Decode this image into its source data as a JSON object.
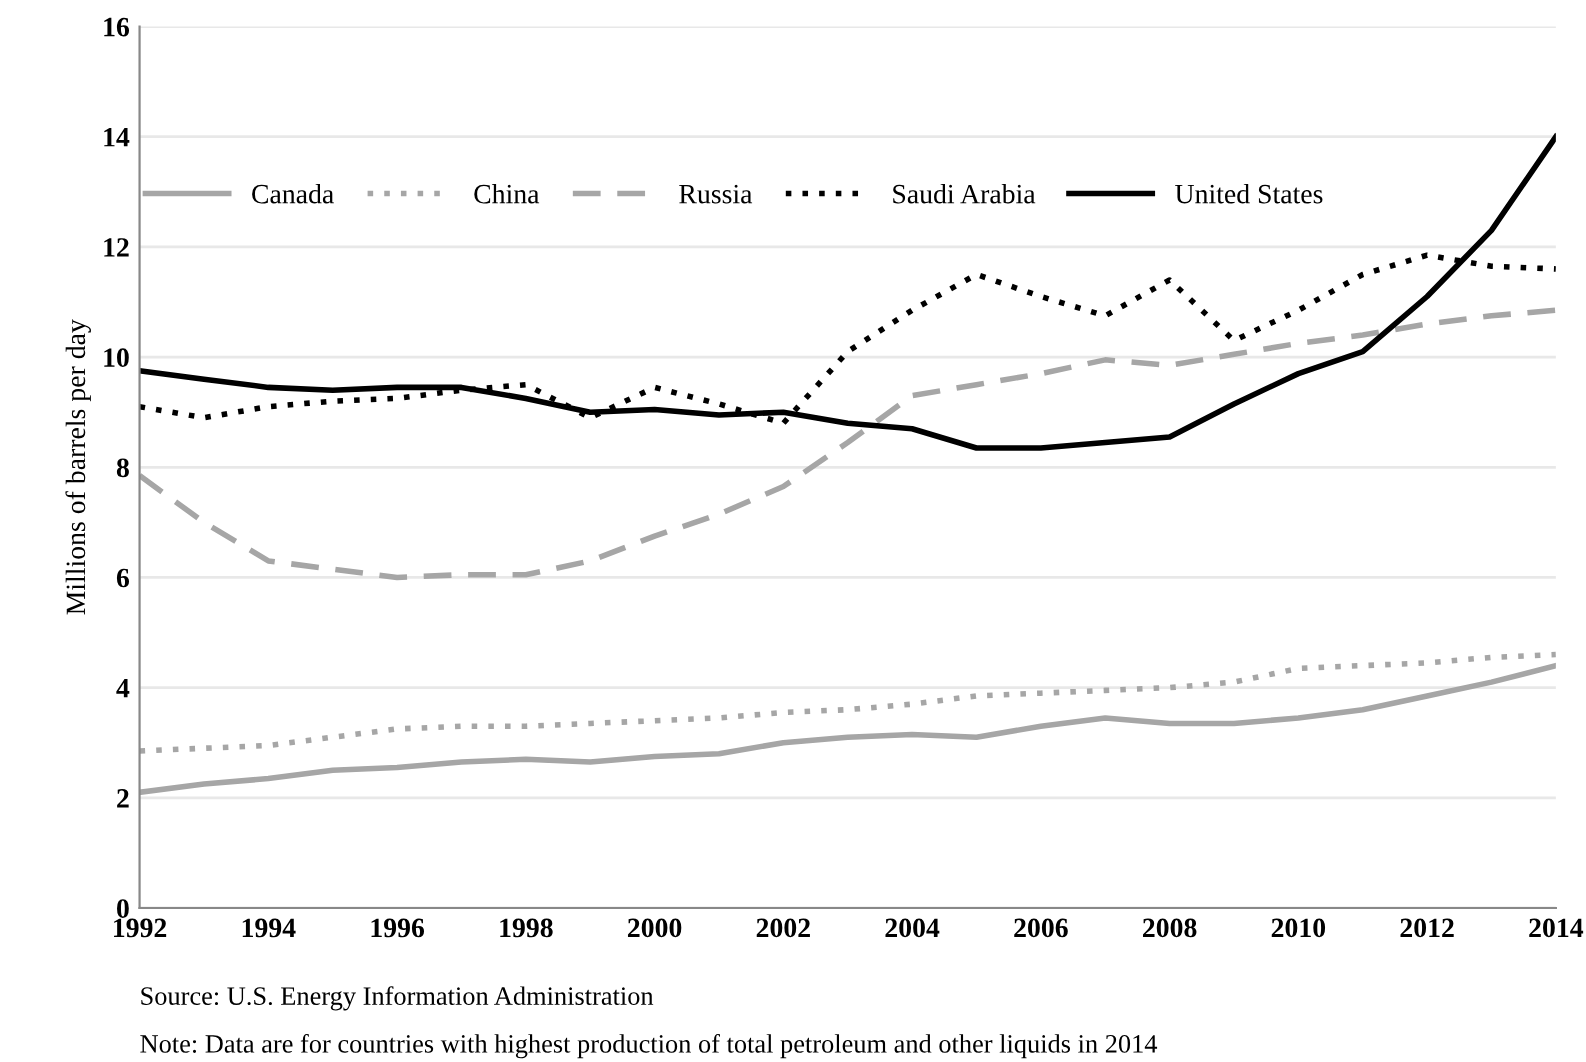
{
  "chart_data": {
    "type": "line",
    "ylabel": "Millions of barrels per day",
    "x": [
      1992,
      1993,
      1994,
      1995,
      1996,
      1997,
      1998,
      1999,
      2000,
      2001,
      2002,
      2003,
      2004,
      2005,
      2006,
      2007,
      2008,
      2009,
      2010,
      2011,
      2012,
      2013,
      2014
    ],
    "series": [
      {
        "name": "Canada",
        "color": "#a6a6a6",
        "line_style": "solid",
        "values": [
          2.1,
          2.25,
          2.35,
          2.5,
          2.55,
          2.65,
          2.7,
          2.65,
          2.75,
          2.8,
          3.0,
          3.1,
          3.15,
          3.1,
          3.3,
          3.45,
          3.35,
          3.35,
          3.45,
          3.6,
          3.85,
          4.1,
          4.4
        ]
      },
      {
        "name": "China",
        "color": "#a6a6a6",
        "line_style": "dotted",
        "values": [
          2.85,
          2.9,
          2.95,
          3.1,
          3.25,
          3.3,
          3.3,
          3.35,
          3.4,
          3.45,
          3.55,
          3.6,
          3.7,
          3.85,
          3.9,
          3.95,
          4.0,
          4.1,
          4.35,
          4.4,
          4.45,
          4.55,
          4.6
        ]
      },
      {
        "name": "Russia",
        "color": "#a6a6a6",
        "line_style": "dashed",
        "values": [
          7.85,
          7.0,
          6.3,
          6.15,
          6.0,
          6.05,
          6.05,
          6.3,
          6.75,
          7.15,
          7.65,
          8.45,
          9.3,
          9.5,
          9.7,
          9.95,
          9.85,
          10.05,
          10.25,
          10.4,
          10.6,
          10.75,
          10.85
        ]
      },
      {
        "name": "Saudi Arabia",
        "color": "#000000",
        "line_style": "dotted",
        "values": [
          9.1,
          8.9,
          9.1,
          9.2,
          9.25,
          9.4,
          9.5,
          8.9,
          9.45,
          9.15,
          8.8,
          10.1,
          10.85,
          11.5,
          11.1,
          10.75,
          11.4,
          10.3,
          10.85,
          11.5,
          11.85,
          11.65,
          11.6
        ]
      },
      {
        "name": "United States",
        "color": "#000000",
        "line_style": "solid",
        "values": [
          9.75,
          9.6,
          9.45,
          9.4,
          9.45,
          9.45,
          9.25,
          9.0,
          9.05,
          8.95,
          9.0,
          8.8,
          8.7,
          8.35,
          8.35,
          8.45,
          8.55,
          9.15,
          9.7,
          10.1,
          11.1,
          12.3,
          14.0
        ]
      }
    ],
    "xlim": [
      1992,
      2014
    ],
    "xticks": [
      1992,
      1994,
      1996,
      1998,
      2000,
      2002,
      2004,
      2006,
      2008,
      2010,
      2012,
      2014
    ],
    "ylim": [
      0,
      16
    ],
    "yticks": [
      0,
      2,
      4,
      6,
      8,
      10,
      12,
      14,
      16
    ],
    "grid": "y",
    "legend": "top",
    "annotations": [
      "Source: U.S. Energy Information Administration",
      "Note: Data are for countries with highest production of total petroleum and other liquids in 2014"
    ]
  }
}
